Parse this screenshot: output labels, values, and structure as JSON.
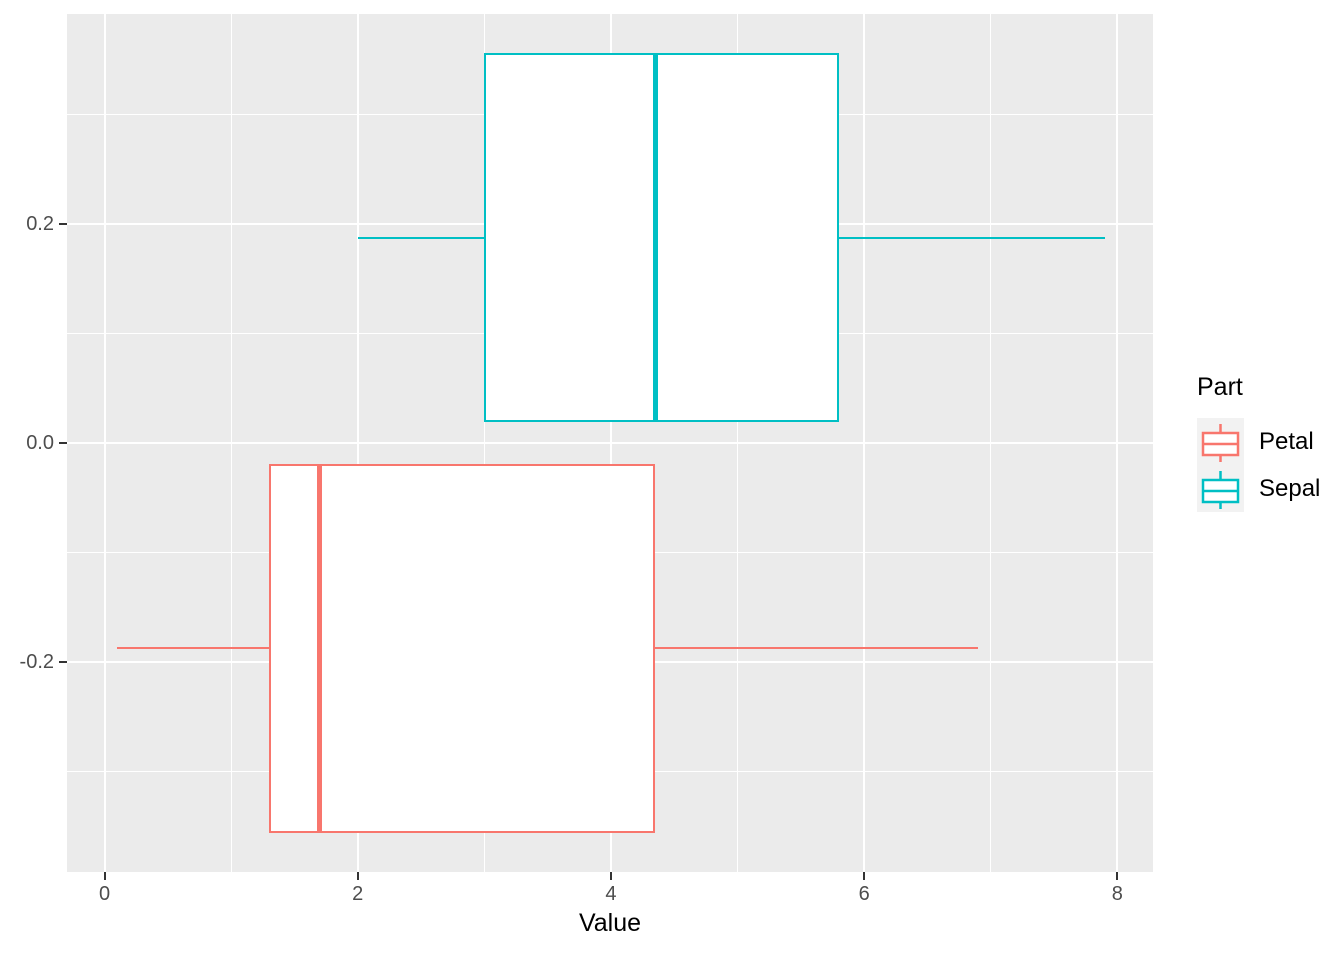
{
  "chart_data": {
    "type": "boxplot",
    "orientation": "horizontal",
    "title": "",
    "xlabel": "Value",
    "ylabel": "",
    "xlim": [
      -0.2965,
      8.2815
    ],
    "ylim": [
      -0.3918,
      0.3918
    ],
    "grid": true,
    "panel_bg": "#EBEBEB",
    "grid_color": "#FFFFFF",
    "tick_color": "#333333",
    "tick_label_color": "#4D4D4D",
    "x_ticks": [
      {
        "value": 0,
        "label": "0"
      },
      {
        "value": 2,
        "label": "2"
      },
      {
        "value": 4,
        "label": "4"
      },
      {
        "value": 6,
        "label": "6"
      },
      {
        "value": 8,
        "label": "8"
      }
    ],
    "x_minor_ticks": [
      1,
      3,
      5,
      7
    ],
    "y_ticks": [
      {
        "value": 0.2,
        "label": "0.2"
      },
      {
        "value": 0.0,
        "label": "0.0"
      },
      {
        "value": -0.2,
        "label": "-0.2"
      }
    ],
    "y_minor_ticks": [
      0.3,
      0.1,
      -0.1,
      -0.3
    ],
    "series": [
      {
        "name": "Petal",
        "color": "#F8766D",
        "center_y": -0.1875,
        "box_height": 0.3375,
        "whisker_min": 0.1,
        "q1": 1.3,
        "median": 1.7,
        "q3": 4.35,
        "whisker_max": 6.9
      },
      {
        "name": "Sepal",
        "color": "#00BFC4",
        "center_y": 0.1875,
        "box_height": 0.3375,
        "whisker_min": 2.0,
        "q1": 3.0,
        "median": 4.35,
        "q3": 5.8,
        "whisker_max": 7.9
      }
    ],
    "legend": {
      "title": "Part",
      "position": "right",
      "key_bg": "#F2F2F2",
      "entries": [
        {
          "label": "Petal",
          "color": "#F8766D"
        },
        {
          "label": "Sepal",
          "color": "#00BFC4"
        }
      ]
    }
  }
}
